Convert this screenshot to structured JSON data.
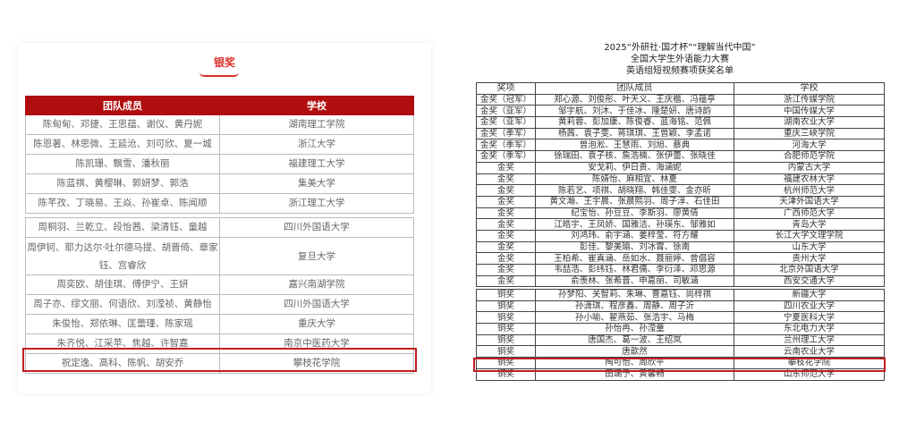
{
  "left": {
    "heading": "银奖",
    "columns": [
      "团队成员",
      "学校"
    ],
    "rows_part1": [
      [
        "陈甸甸、邓捷、王思蕴、谢仪、黄丹妮",
        "湖南理工学院"
      ],
      [
        "陈恩著、林思微、王延沧、刘可欣、夏一城",
        "浙江大学"
      ],
      [
        "陈凯珊、飘雪、潘秋丽",
        "福建理工大学"
      ],
      [
        "陈蓝祺、黄樱琳、郭妍梦、郭浩",
        "集美大学"
      ],
      [
        "陈芊孜、丁晓易、王焱、孙崔卓、陈闻顺",
        "浙江理工大学"
      ]
    ],
    "rows_part2": [
      [
        "周桐羽、兰乾立、段怡茜、梁清钰、童越",
        "四川外国语大学"
      ],
      [
        "周伊钶、耶力达尔·吐尔德马提、胡晋倚、章家钰、宫睿欣",
        "复旦大学"
      ],
      [
        "周奕欧、胡佳琪、傅伊宁、王妍",
        "嘉兴南湖学院"
      ],
      [
        "周子亦、缪文丽、何语欣、刘滢祯、黄静怡",
        "四川外国语大学"
      ],
      [
        "朱俊怡、郑依琳、匡蕾瑾、陈家瑶",
        "重庆大学"
      ],
      [
        "朱齐悦、江采苹、焦越、许智嘉",
        "南京中医药大学"
      ],
      [
        "祝定逸、高科、陈帆、胡安乔",
        "攀枝花学院"
      ]
    ]
  },
  "right": {
    "title_lines": [
      "2025“外研社·国才杯”“理解当代中国”",
      "全国大学生外语能力大赛",
      "英语组短视频赛项获奖名单"
    ],
    "columns": [
      "奖项",
      "团队成员",
      "学校"
    ],
    "rows_part1": [
      [
        "金奖（冠军）",
        "郑心源、刘俊彤、叶天义、王庆楷、冯蕴亭",
        "浙江传媒学院"
      ],
      [
        "金奖（亚军）",
        "邹宇航、刘沐、于佳冰、隆楚妍、唐诗韵",
        "中国传媒大学"
      ],
      [
        "金奖（亚军）",
        "黄莉蓉、彭加康、陈俊睿、蓝海铭、范佩",
        "湖南农业大学"
      ],
      [
        "金奖（季军）",
        "杨茜、袁子雯、蒋琪琪、王曾颖、李孟诺",
        "重庆三峡学院"
      ],
      [
        "金奖（季军）",
        "曾泡淞、王慧雨、刘旭、蔡典",
        "河海大学"
      ],
      [
        "金奖（季军）",
        "徐瑞田、袁子核、詹浩楠、张伊蕾、张晓佳",
        "合肥师范学院"
      ],
      [
        "金奖",
        "安戈莉、伊日贵、海涵妮",
        "内蒙古大学"
      ],
      [
        "金奖",
        "陈婧怡、麻相宜、林夏",
        "福建农林大学"
      ],
      [
        "金奖",
        "陈若艺、项祺、胡晓翔、韩佳雯、金亦昕",
        "杭州师范大学"
      ],
      [
        "金奖",
        "黄文瀚、王宇晨、张晨熙羽、周子淳、石佳田",
        "天津外国语大学"
      ],
      [
        "金奖",
        "纪宝怡、孙豆豆、李斯羽、廖黄倩",
        "广西师范大学"
      ],
      [
        "金奖",
        "江皓宇、王凤娇、国雅洁、孙瑛东、邹雅如",
        "青岛大学"
      ],
      [
        "金奖",
        "刘鸿玮、俞宇涵、姜梓莹、符方耀",
        "长江大学文理学院"
      ],
      [
        "金奖",
        "彭佳、黎美瑜、刘冰霄、徐南",
        "山东大学"
      ],
      [
        "金奖",
        "王柏希、崔真涵、岳如水、聂丽婷、曾倡容",
        "贵州大学"
      ],
      [
        "金奖",
        "韦喆浩、彭纬钰、林君儒、李衍泽、邓思源",
        "北京外国语大学"
      ],
      [
        "金奖",
        "俞羡林、张希晋、申嘉丽、司敏涵",
        "西安交通大学"
      ]
    ],
    "rows_part2": [
      [
        "铜奖",
        "孙梦阳、关智莉、朱琳、曹嘉钰、尚梓祺",
        "新疆大学"
      ],
      [
        "铜奖",
        "孙潇琪、程彦鑫、周静、周子沂",
        "四川农业大学"
      ],
      [
        "铜奖",
        "孙小喻、翟燕茹、张浩宇、马梅",
        "宁夏医科大学"
      ],
      [
        "铜奖",
        "孙怡冉、孙滢童",
        "东北电力大学"
      ],
      [
        "铜奖",
        "唐国杰、葛一波、王绍岚",
        "兰州理工大学"
      ],
      [
        "铜奖",
        "唐歆然",
        "云南农业大学"
      ],
      [
        "铜奖",
        "陶可怡、周欣平",
        "攀枝花学院"
      ],
      [
        "铜奖",
        "田涵予、黄馨畅",
        "山东师范大学"
      ]
    ]
  },
  "colors": {
    "accent_red": "#b00e0e",
    "highlight_red": "#c21d22"
  }
}
